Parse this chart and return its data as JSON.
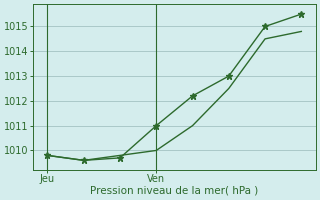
{
  "line1_x": [
    0,
    1,
    2,
    3,
    4,
    5,
    6,
    7
  ],
  "line1_y": [
    1009.8,
    1009.6,
    1009.7,
    1011.0,
    1012.2,
    1013.0,
    1015.0,
    1015.5
  ],
  "line2_x": [
    0,
    1,
    2,
    3,
    4,
    5,
    6,
    7
  ],
  "line2_y": [
    1009.8,
    1009.6,
    1009.8,
    1010.0,
    1011.0,
    1012.5,
    1014.5,
    1014.8
  ],
  "xtick_positions": [
    0,
    3
  ],
  "xtick_labels": [
    "Jeu",
    "Ven"
  ],
  "ytick_positions": [
    1010,
    1011,
    1012,
    1013,
    1014,
    1015
  ],
  "ytick_labels": [
    "1010",
    "1011",
    "1012",
    "1013",
    "1014",
    "1015"
  ],
  "ylim": [
    1009.2,
    1015.9
  ],
  "xlim": [
    -0.4,
    7.4
  ],
  "xlabel": "Pression niveau de la mer( hPa )",
  "line_color": "#2d6a2d",
  "bg_color": "#d4eded",
  "grid_color": "#aac8c8",
  "marker": "*",
  "marker_size": 4.5,
  "linewidth": 1.0
}
